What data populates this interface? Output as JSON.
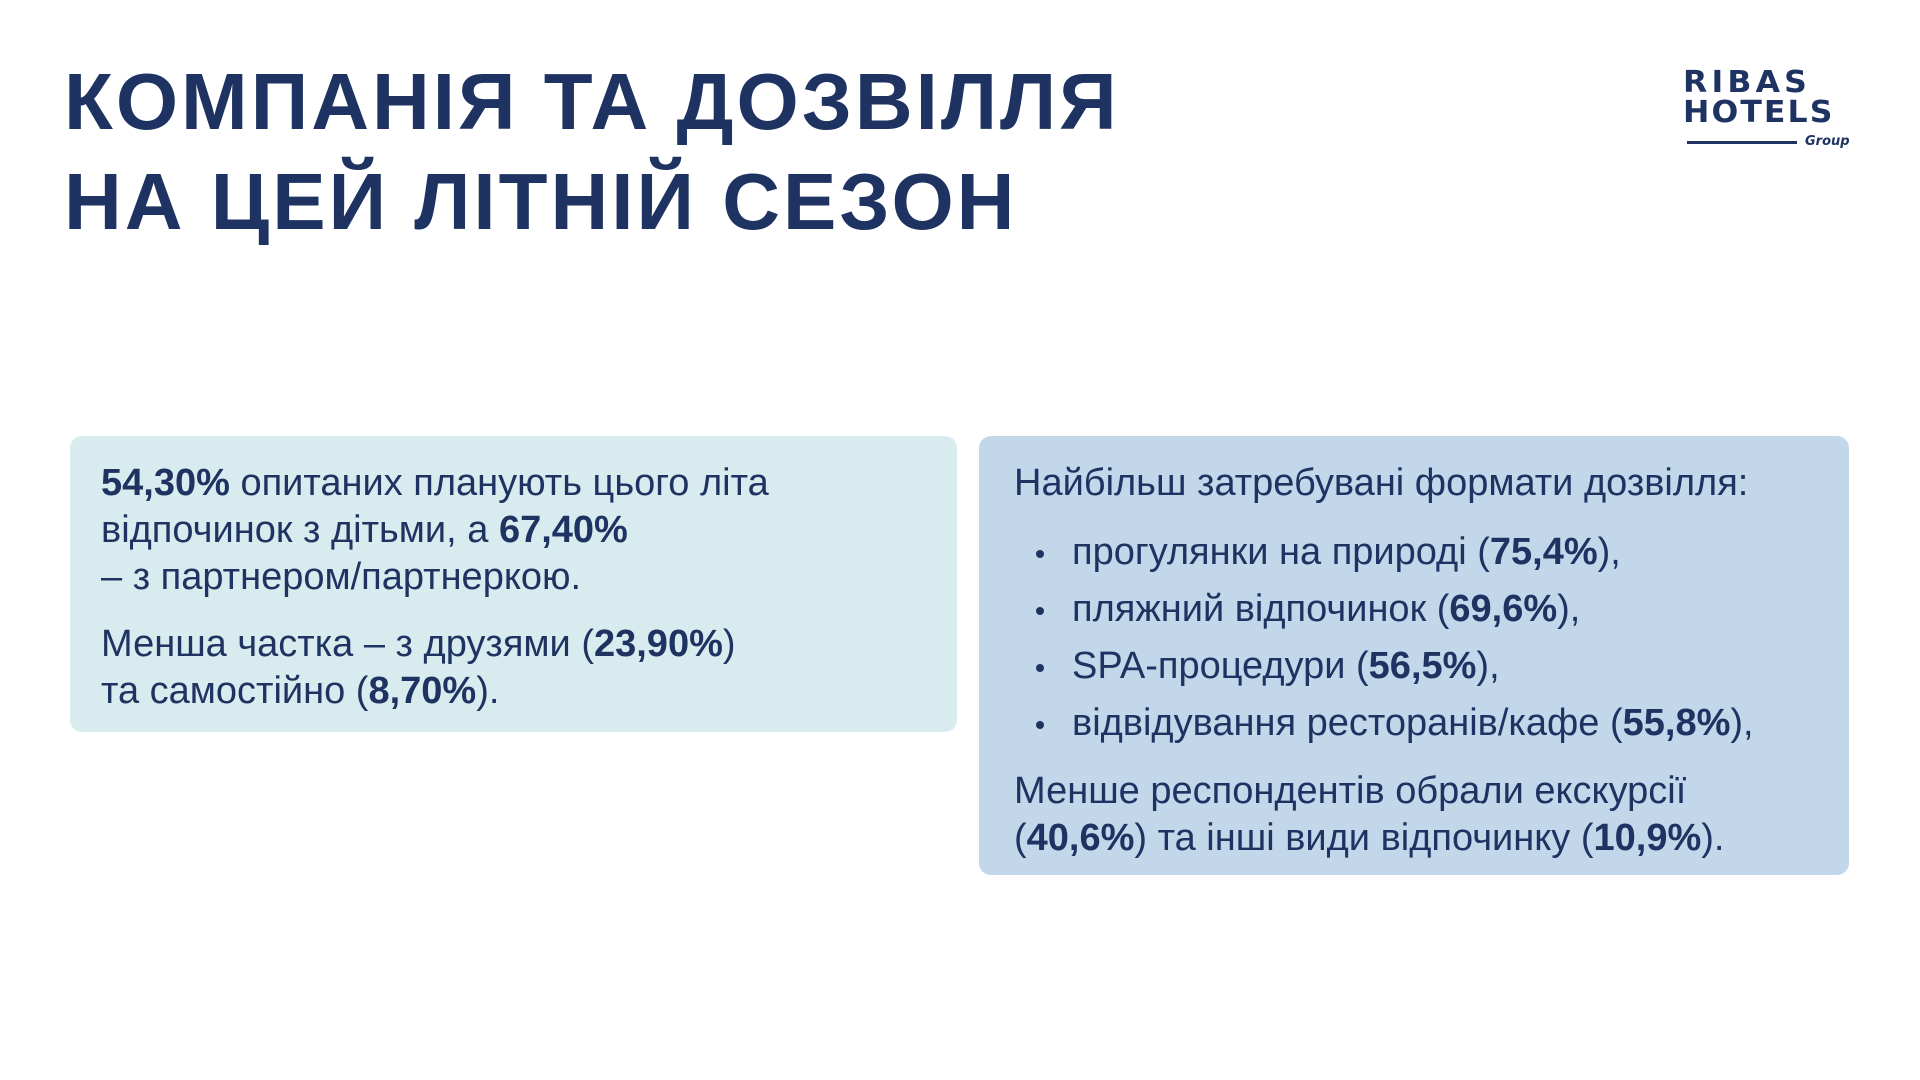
{
  "slide": {
    "title_lines": [
      "КОМПАНІЯ ТА ДОЗВІЛЛЯ",
      "НА ЦЕЙ ЛІТНІЙ СЕЗОН"
    ],
    "logo": {
      "line1": "RIBAS",
      "line2": "HOTELS",
      "subtitle": "Group"
    },
    "colors": {
      "text": "#1e3361",
      "left_box_bg": "#d8ecef",
      "right_box_bg": "#c2d7ea",
      "background": "#ffffff"
    }
  },
  "left_box": {
    "para1": {
      "pct1": "54,30%",
      "text1": " опитаних планують цього літа",
      "text2": "відпочинок з дітьми, а ",
      "pct2": "67,40%",
      "text3": "– з партнером/партнеркою."
    },
    "para2": {
      "text1": "Менша частка – з друзями (",
      "pct1": "23,90%",
      "text2": ")",
      "text3": "та самостійно (",
      "pct2": "8,70%",
      "text4": ")."
    }
  },
  "right_box": {
    "heading": "Найбільш затребувані формати дозвілля:",
    "items": [
      {
        "label": "прогулянки на природі (",
        "pct": "75,4%",
        "suffix": "),"
      },
      {
        "label": "пляжний відпочинок (",
        "pct": "69,6%",
        "suffix": "),"
      },
      {
        "label": "SPA-процедури (",
        "pct": "56,5%",
        "suffix": "),"
      },
      {
        "label": "відвідування ресторанів/кафе (",
        "pct": "55,8%",
        "suffix": "),"
      }
    ],
    "footer": {
      "text1": "Менше респондентів обрали екскурсії",
      "open1": "(",
      "pct1": "40,6%",
      "text2": ") та інші види відпочинку (",
      "pct2": "10,9%",
      "text3": ")."
    }
  }
}
